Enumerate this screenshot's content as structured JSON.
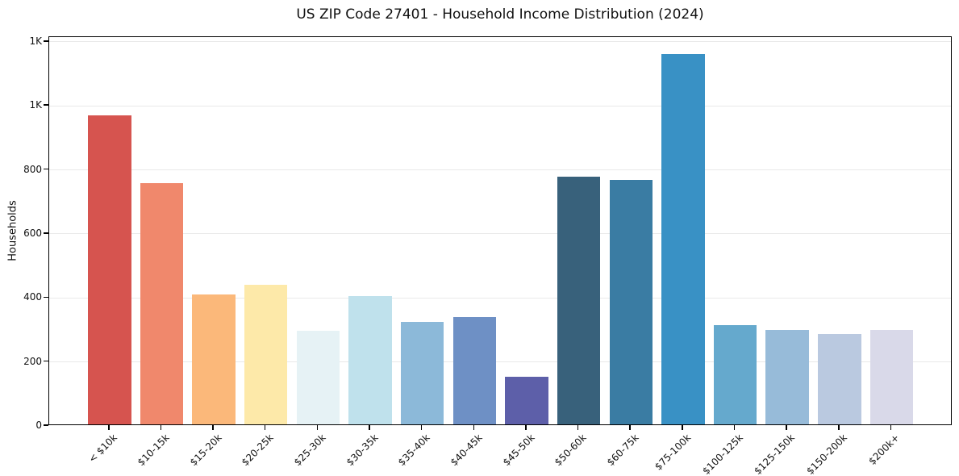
{
  "title": "US ZIP Code 27401 - Household Income Distribution (2024)",
  "chart_data": {
    "type": "bar",
    "title": "US ZIP Code 27401 - Household Income Distribution (2024)",
    "xlabel": "",
    "ylabel": "Households",
    "categories": [
      "< $10k",
      "$10-15k",
      "$15-20k",
      "$20-25k",
      "$25-30k",
      "$30-35k",
      "$35-40k",
      "$40-45k",
      "$45-50k",
      "$50-60k",
      "$60-75k",
      "$75-100k",
      "$100-125k",
      "$125-150k",
      "$150-200k",
      "$200k+"
    ],
    "values": [
      965,
      755,
      407,
      437,
      292,
      400,
      319,
      336,
      148,
      774,
      763,
      1158,
      309,
      296,
      283,
      294
    ],
    "bar_colors": [
      "#d6544f",
      "#f0886c",
      "#fbb87a",
      "#fde9a9",
      "#e6f2f5",
      "#bfe1ec",
      "#8cb9d9",
      "#6e90c5",
      "#5d5fa9",
      "#38617b",
      "#3a7ca3",
      "#3991c5",
      "#65a9cd",
      "#97bbd9",
      "#bac9e0",
      "#d9d9e9"
    ],
    "ylim": [
      0,
      1215
    ],
    "yticks": [
      {
        "value": 0,
        "label": "0"
      },
      {
        "value": 200,
        "label": "200"
      },
      {
        "value": 400,
        "label": "400"
      },
      {
        "value": 600,
        "label": "600"
      },
      {
        "value": 800,
        "label": "800"
      },
      {
        "value": 1000,
        "label": "1K"
      },
      {
        "value": 1200,
        "label": "1K"
      }
    ],
    "grid": "horizontal",
    "legend": "none",
    "x_tick_rotation": 45
  }
}
